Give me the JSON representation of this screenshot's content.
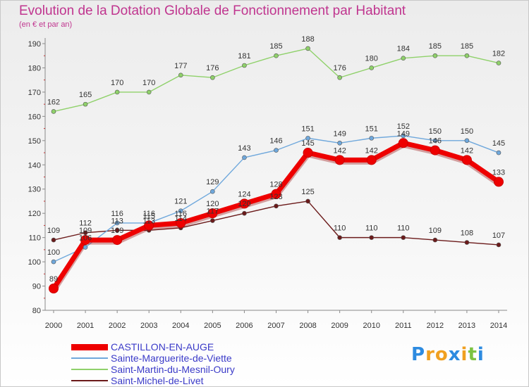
{
  "header": {
    "title": "Evolution de la Dotation Globale de Fonctionnement par Habitant",
    "subtitle": "(en € et par an)"
  },
  "logo": {
    "letters": [
      "P",
      "r",
      "o",
      "x",
      "i",
      "t",
      "i"
    ],
    "colors": [
      "#2d8be0",
      "#f0a020",
      "#f0a020",
      "#2d8be0",
      "#f0a020",
      "#7cc242",
      "#2d8be0"
    ]
  },
  "chart_data": {
    "type": "line",
    "title": "Evolution de la Dotation Globale de Fonctionnement par Habitant",
    "subtitle": "(en € et par an)",
    "xlabel": "",
    "ylabel": "",
    "ylim": [
      80,
      190
    ],
    "yticks": [
      80,
      90,
      100,
      110,
      120,
      130,
      140,
      150,
      160,
      170,
      180,
      190
    ],
    "grid": false,
    "legend_position": "bottom",
    "x": [
      "2000",
      "2001",
      "2002",
      "2003",
      "2004",
      "2005",
      "2006",
      "2007",
      "2008",
      "2009",
      "2010",
      "2011",
      "2012",
      "2013",
      "2014"
    ],
    "series": [
      {
        "name": "CASTILLON-EN-AUGE",
        "color": "#ee0000",
        "values": [
          89,
          109,
          109,
          115,
          116,
          120,
          124,
          128,
          145,
          142,
          142,
          149,
          146,
          142,
          133
        ],
        "labels": [
          "89",
          "109",
          "109",
          "115",
          "116",
          "120",
          "124",
          "128",
          "145",
          "142",
          "142",
          "149",
          "146",
          "142",
          "133"
        ]
      },
      {
        "name": "Sainte-Marguerite-de-Viette",
        "color": "#6fa8dc",
        "values": [
          100,
          106,
          116,
          116,
          121,
          129,
          143,
          146,
          151,
          149,
          151,
          152,
          150,
          150,
          145
        ],
        "labels": [
          "100",
          "106",
          "116",
          "116",
          "121",
          "129",
          "143",
          "146",
          "151",
          "149",
          "151",
          "152",
          "150",
          "150",
          "145"
        ]
      },
      {
        "name": "Saint-Martin-du-Mesnil-Oury",
        "color": "#8fd16a",
        "values": [
          162,
          165,
          170,
          170,
          177,
          176,
          181,
          185,
          188,
          176,
          180,
          184,
          185,
          185,
          182
        ],
        "labels": [
          "162",
          "165",
          "170",
          "170",
          "177",
          "176",
          "181",
          "185",
          "188",
          "176",
          "180",
          "184",
          "185",
          "185",
          "182"
        ]
      },
      {
        "name": "Saint-Michel-de-Livet",
        "color": "#6b1a1a",
        "values": [
          109,
          112,
          113,
          113,
          114,
          117,
          120,
          123,
          125,
          110,
          110,
          110,
          109,
          108,
          107
        ],
        "labels": [
          "109",
          "112",
          "113",
          "113",
          "114",
          "117",
          "120",
          "123",
          "125",
          "110",
          "110",
          "110",
          "109",
          "108",
          "107"
        ]
      }
    ]
  }
}
